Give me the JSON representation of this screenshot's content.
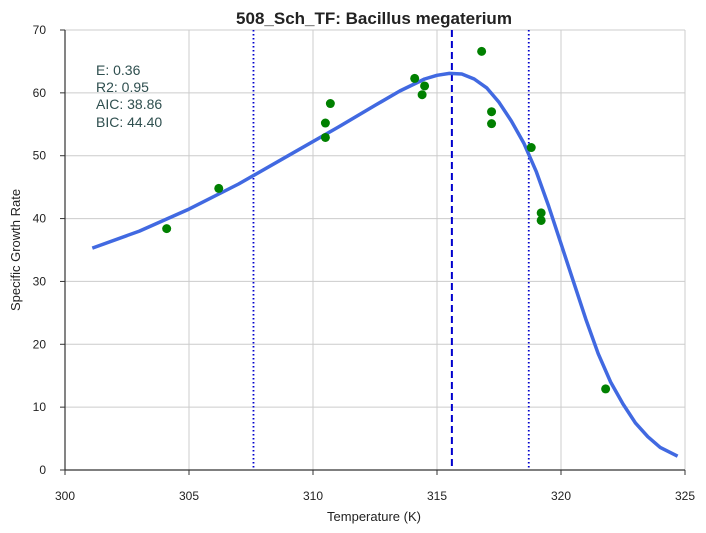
{
  "chart_data": {
    "type": "scatter",
    "title": "508_Sch_TF: Bacillus megaterium",
    "xlabel": "Temperature (K)",
    "ylabel": "Specific Growth Rate",
    "xlim": [
      300,
      325
    ],
    "ylim": [
      0,
      70
    ],
    "xticks": [
      300,
      305,
      310,
      315,
      320,
      325
    ],
    "yticks": [
      0,
      10,
      20,
      30,
      40,
      50,
      60,
      70
    ],
    "grid": true,
    "annotations": [
      "E:  0.36",
      "R2:  0.95",
      "AIC: 38.86",
      "BIC: 44.40"
    ],
    "series": [
      {
        "kind": "scatter",
        "color": "#008000",
        "points": [
          [
            304.1,
            38.4
          ],
          [
            306.2,
            44.8
          ],
          [
            310.5,
            55.2
          ],
          [
            310.5,
            52.9
          ],
          [
            310.7,
            58.3
          ],
          [
            314.1,
            62.3
          ],
          [
            314.4,
            59.7
          ],
          [
            314.5,
            61.1
          ],
          [
            316.8,
            66.6
          ],
          [
            317.2,
            55.1
          ],
          [
            317.2,
            57.0
          ],
          [
            318.8,
            51.3
          ],
          [
            319.2,
            40.9
          ],
          [
            319.2,
            39.7
          ],
          [
            321.8,
            12.9
          ]
        ]
      },
      {
        "kind": "line",
        "color": "#4169e1",
        "points": [
          [
            301.1,
            35.3
          ],
          [
            303.0,
            38.0
          ],
          [
            305.0,
            41.5
          ],
          [
            307.0,
            45.5
          ],
          [
            309.0,
            50.0
          ],
          [
            311.0,
            54.5
          ],
          [
            312.5,
            58.0
          ],
          [
            313.5,
            60.3
          ],
          [
            314.5,
            62.2
          ],
          [
            315.0,
            62.8
          ],
          [
            315.5,
            63.1
          ],
          [
            316.0,
            63.0
          ],
          [
            316.5,
            62.2
          ],
          [
            317.0,
            60.8
          ],
          [
            317.5,
            58.5
          ],
          [
            318.0,
            55.5
          ],
          [
            318.5,
            52.0
          ],
          [
            319.0,
            47.5
          ],
          [
            319.5,
            42.0
          ],
          [
            320.0,
            36.0
          ],
          [
            320.5,
            30.0
          ],
          [
            321.0,
            24.0
          ],
          [
            321.5,
            18.5
          ],
          [
            322.0,
            14.0
          ],
          [
            322.5,
            10.5
          ],
          [
            323.0,
            7.5
          ],
          [
            323.5,
            5.3
          ],
          [
            324.0,
            3.6
          ],
          [
            324.7,
            2.2
          ]
        ]
      },
      {
        "kind": "vline",
        "color": "#0000cd",
        "style": "dashed",
        "x": 315.6
      },
      {
        "kind": "vline",
        "color": "#0000cd",
        "style": "dotted",
        "x": 307.6
      },
      {
        "kind": "vline",
        "color": "#0000cd",
        "style": "dotted",
        "x": 318.7
      }
    ]
  }
}
